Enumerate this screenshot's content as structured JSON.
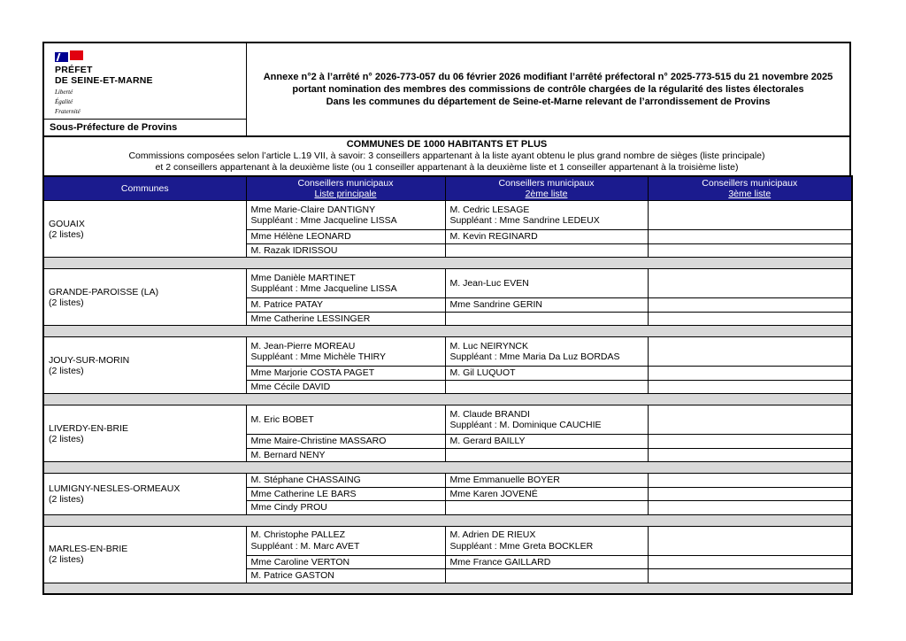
{
  "colors": {
    "header_bg": "#1b1b8e",
    "separator": "#d9d9d9",
    "flag_blue": "#000091",
    "flag_red": "#e1000f"
  },
  "header": {
    "logo": {
      "icon": "french-republic-flag-icon",
      "line1": "PRÉFET",
      "line2": "DE SEINE-ET-MARNE",
      "motto": [
        "Liberté",
        "Égalité",
        "Fraternité"
      ]
    },
    "sous_prefecture": "Sous-Préfecture de Provins",
    "title_lines": [
      "Annexe n°2 à l’arrêté n° 2026-773-057 du 06 février 2026 modifiant l’arrêté préfectoral n° 2025-773-515 du 21 novembre 2025",
      "portant nomination des membres des commissions de contrôle chargées de la régularité des listes électorales",
      "Dans les communes du département de Seine-et-Marne relevant de l’arrondissement de Provins"
    ]
  },
  "banner": {
    "title": "COMMUNES DE 1000 HABITANTS ET PLUS",
    "line1": "Commissions composées selon l’article L.19 VII, à savoir: 3 conseillers appartenant à la liste ayant obtenu le plus grand nombre de sièges (liste principale)",
    "line2": "et 2 conseillers appartenant à la deuxième liste (ou 1 conseiller appartenant à la deuxième liste et 1 conseiller appartenant à la troisième liste)"
  },
  "table": {
    "headers": [
      {
        "label": "Communes",
        "sub": ""
      },
      {
        "label": "Conseillers municipaux",
        "sub": "Liste principale"
      },
      {
        "label": "Conseillers municipaux",
        "sub": "2ème liste"
      },
      {
        "label": "Conseillers municipaux",
        "sub": "3ème liste"
      }
    ],
    "communes": [
      {
        "name": "GOUAIX",
        "note": "(2 listes)",
        "rows": [
          [
            [
              "Mme  Marie-Claire DANTIGNY",
              "Suppléant : Mme Jacqueline LISSA"
            ],
            [
              "M. Cedric LESAGE",
              "Suppléant : Mme Sandrine LEDEUX"
            ],
            []
          ],
          [
            [
              "Mme  Hélène LEONARD"
            ],
            [
              "M. Kevin REGINARD"
            ],
            []
          ],
          [
            [
              "M. Razak IDRISSOU"
            ],
            [],
            []
          ]
        ]
      },
      {
        "name": "GRANDE-PAROISSE (LA)",
        "note": "(2 listes)",
        "rows": [
          [
            [
              "Mme Danièle MARTINET",
              "Suppléant : Mme Jacqueline LISSA"
            ],
            [
              "M. Jean-Luc EVEN"
            ],
            []
          ],
          [
            [
              "M. Patrice PATAY"
            ],
            [
              "Mme Sandrine GERIN"
            ],
            []
          ],
          [
            [
              "Mme Catherine LESSINGER"
            ],
            [],
            []
          ]
        ]
      },
      {
        "name": "JOUY-SUR-MORIN",
        "note": "(2 listes)",
        "rows": [
          [
            [
              "M. Jean-Pierre MOREAU",
              "Suppléant : Mme Michèle THIRY"
            ],
            [
              "M. Luc NEIRYNCK",
              "Suppléant : Mme Maria Da Luz BORDAS"
            ],
            []
          ],
          [
            [
              "Mme Marjorie COSTA PAGET"
            ],
            [
              "M. Gil LUQUOT"
            ],
            []
          ],
          [
            [
              "Mme Cécile DAVID"
            ],
            [],
            []
          ]
        ]
      },
      {
        "name": "LIVERDY-EN-BRIE",
        "note": "(2 listes)",
        "rows": [
          [
            [
              "M. Eric BOBET"
            ],
            [
              "M. Claude BRANDI",
              "Suppléant : M. Dominique CAUCHIE"
            ],
            []
          ],
          [
            [
              "Mme Maire-Christine MASSARO"
            ],
            [
              "M. Gerard BAILLY"
            ],
            []
          ],
          [
            [
              "M. Bernard NENY"
            ],
            [],
            []
          ]
        ]
      },
      {
        "name": "LUMIGNY-NESLES-ORMEAUX",
        "note": "(2 listes)",
        "rows": [
          [
            [
              "M. Stéphane CHASSAING"
            ],
            [
              "Mme Emmanuelle BOYER"
            ],
            []
          ],
          [
            [
              "Mme Catherine LE BARS"
            ],
            [
              "Mme Karen JOVENÉ"
            ],
            []
          ],
          [
            [
              "Mme Cindy PROU"
            ],
            [],
            []
          ]
        ]
      },
      {
        "name": "MARLES-EN-BRIE",
        "note": "(2 listes)",
        "rows": [
          [
            [
              "M. Christophe PALLEZ",
              "Suppléant : M. Marc AVET"
            ],
            [
              "M. Adrien DE RIEUX",
              "Suppléant : Mme Greta BOCKLER"
            ],
            []
          ],
          [
            [
              "Mme Caroline VERTON"
            ],
            [
              "Mme France GAILLARD"
            ],
            []
          ],
          [
            [
              "M. Patrice GASTON"
            ],
            [],
            []
          ]
        ]
      }
    ]
  }
}
